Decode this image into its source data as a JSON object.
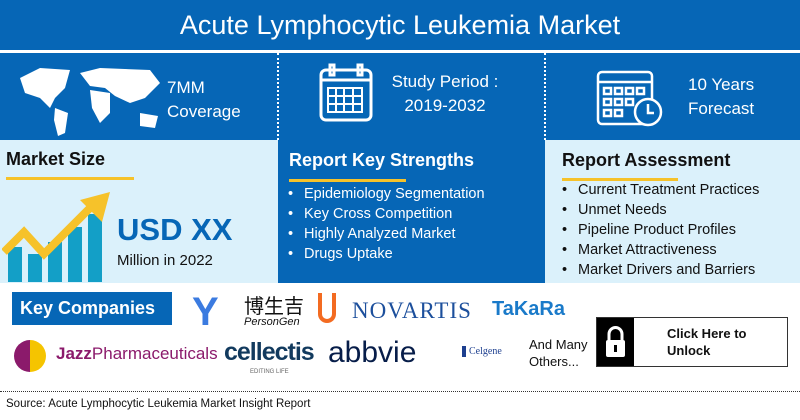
{
  "title": "Acute Lymphocytic Leukemia Market",
  "top": {
    "coverage": {
      "line1": "7MM",
      "line2": "Coverage",
      "icon": "world-map-icon"
    },
    "study": {
      "line1": "Study Period :",
      "line2": "2019-2032",
      "icon": "calendar-icon"
    },
    "forecast": {
      "line1": "10 Years",
      "line2": "Forecast",
      "icon": "calendar-clock-icon"
    }
  },
  "market_size": {
    "title": "Market Size",
    "value": "USD XX",
    "sub": "Million in 2022",
    "icon": "growth-chart-icon"
  },
  "strengths": {
    "title": "Report Key Strengths",
    "items": [
      "Epidemiology Segmentation",
      "Key Cross Competition",
      "Highly Analyzed Market",
      "Drugs Uptake"
    ]
  },
  "assessment": {
    "title": "Report Assessment",
    "items": [
      "Current Treatment Practices",
      "Unmet Needs",
      "Pipeline Product Profiles",
      "Market Attractiveness",
      "Market Drivers and Barriers"
    ]
  },
  "companies": {
    "label": "Key Companies",
    "logos": [
      "博生吉",
      "PersonGen",
      "NOVARTIS",
      "TaKaRa",
      "Jazz",
      "Pharmaceuticals",
      "cellectis",
      "EDITING LIFE",
      "abbvie",
      "Celgene"
    ],
    "others": "And Many Others..."
  },
  "unlock": {
    "label": "Click Here to Unlock",
    "icon": "lock-icon"
  },
  "source": "Source: Acute Lymphocytic Leukemia Market Insight Report",
  "colors": {
    "primary": "#0666b6",
    "light": "#dbf1fb",
    "accent": "#f6c22a"
  }
}
